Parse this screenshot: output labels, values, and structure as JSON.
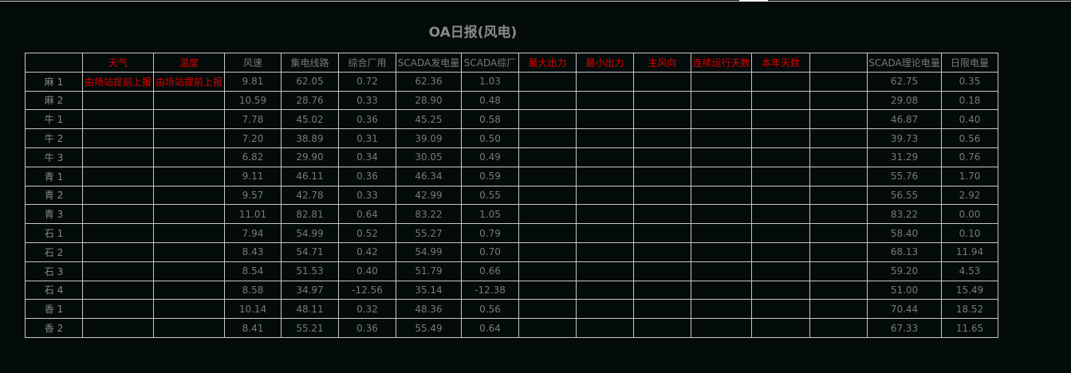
{
  "title": "OA日报(风电)",
  "columns": [
    "",
    "天气",
    "温度",
    "风速",
    "集电线路",
    "综合厂用",
    "SCADA发电量",
    "SCADA综厂",
    "最大出力",
    "最小出力",
    "主风向",
    "连续运行天数",
    "本年天数",
    "",
    "SCADA理论电量",
    "日限电量"
  ],
  "red_columns": [
    1,
    2,
    8,
    9,
    10,
    11,
    12
  ],
  "colors": {
    "background": "#030b0b",
    "text": "#7a7a7a",
    "highlight": "#e00000",
    "grid": "#c8c8c8"
  },
  "rows": [
    [
      "麻 1",
      "由场站提前上报",
      "由场站提前上报",
      "9.81",
      "62.05",
      "0.72",
      "62.36",
      "1.03",
      "",
      "",
      "",
      "",
      "",
      "",
      "62.75",
      "0.35"
    ],
    [
      "麻 2",
      "",
      "",
      "10.59",
      "28.76",
      "0.33",
      "28.90",
      "0.48",
      "",
      "",
      "",
      "",
      "",
      "",
      "29.08",
      "0.18"
    ],
    [
      "牛 1",
      "",
      "",
      "7.78",
      "45.02",
      "0.36",
      "45.25",
      "0.58",
      "",
      "",
      "",
      "",
      "",
      "",
      "46.87",
      "0.40"
    ],
    [
      "牛 2",
      "",
      "",
      "7.20",
      "38.89",
      "0.31",
      "39.09",
      "0.50",
      "",
      "",
      "",
      "",
      "",
      "",
      "39.73",
      "0.56"
    ],
    [
      "牛 3",
      "",
      "",
      "6.82",
      "29.90",
      "0.34",
      "30.05",
      "0.49",
      "",
      "",
      "",
      "",
      "",
      "",
      "31.29",
      "0.76"
    ],
    [
      "青 1",
      "",
      "",
      "9.11",
      "46.11",
      "0.36",
      "46.34",
      "0.59",
      "",
      "",
      "",
      "",
      "",
      "",
      "55.76",
      "1.70"
    ],
    [
      "青 2",
      "",
      "",
      "9.57",
      "42.78",
      "0.33",
      "42.99",
      "0.55",
      "",
      "",
      "",
      "",
      "",
      "",
      "56.55",
      "2.92"
    ],
    [
      "青 3",
      "",
      "",
      "11.01",
      "82.81",
      "0.64",
      "83.22",
      "1.05",
      "",
      "",
      "",
      "",
      "",
      "",
      "83.22",
      "0.00"
    ],
    [
      "石 1",
      "",
      "",
      "7.94",
      "54.99",
      "0.52",
      "55.27",
      "0.79",
      "",
      "",
      "",
      "",
      "",
      "",
      "58.40",
      "0.10"
    ],
    [
      "石 2",
      "",
      "",
      "8.43",
      "54.71",
      "0.42",
      "54.99",
      "0.70",
      "",
      "",
      "",
      "",
      "",
      "",
      "68.13",
      "11.94"
    ],
    [
      "石 3",
      "",
      "",
      "8.54",
      "51.53",
      "0.40",
      "51.79",
      "0.66",
      "",
      "",
      "",
      "",
      "",
      "",
      "59.20",
      "4.53"
    ],
    [
      "石 4",
      "",
      "",
      "8.58",
      "34.97",
      "-12.56",
      "35.14",
      "-12.38",
      "",
      "",
      "",
      "",
      "",
      "",
      "51.00",
      "15.49"
    ],
    [
      "香 1",
      "",
      "",
      "10.14",
      "48.11",
      "0.32",
      "48.36",
      "0.56",
      "",
      "",
      "",
      "",
      "",
      "",
      "70.44",
      "18.52"
    ],
    [
      "香 2",
      "",
      "",
      "8.41",
      "55.21",
      "0.36",
      "55.49",
      "0.64",
      "",
      "",
      "",
      "",
      "",
      "",
      "67.33",
      "11.65"
    ]
  ]
}
